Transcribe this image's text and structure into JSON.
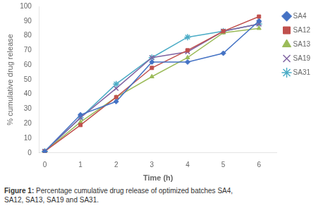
{
  "chart_data": {
    "type": "line",
    "x_label": "Time (h)",
    "y_label": "% cumulative drug release",
    "x": [
      0,
      1,
      2,
      3,
      4,
      5,
      6
    ],
    "series": [
      {
        "name": "SA4",
        "color": "#4472C4",
        "marker": "diamond",
        "values": [
          1,
          26,
          35,
          62,
          62,
          68,
          90
        ]
      },
      {
        "name": "SA12",
        "color": "#C0504D",
        "marker": "square",
        "values": [
          1,
          19,
          38,
          58,
          70,
          83,
          93
        ]
      },
      {
        "name": "SA13",
        "color": "#9BBB59",
        "marker": "triangle",
        "values": [
          1,
          21,
          38,
          52,
          65,
          82,
          85
        ]
      },
      {
        "name": "SA19",
        "color": "#8064A2",
        "marker": "x",
        "values": [
          1,
          24,
          44,
          65,
          69,
          83,
          88
        ]
      },
      {
        "name": "SA31",
        "color": "#4BACC6",
        "marker": "star",
        "values": [
          1,
          24,
          47,
          65,
          79,
          83,
          88
        ]
      }
    ],
    "xlim": [
      -0.15,
      6.5
    ],
    "xticks": [
      0,
      1,
      2,
      3,
      4,
      5,
      6
    ],
    "ylim": [
      0,
      100
    ],
    "yticks": [
      0,
      10,
      20,
      30,
      40,
      50,
      60,
      70,
      80,
      90,
      100
    ],
    "grid": false,
    "legend": "right",
    "annotations": [
      "Figure 1:",
      "Percentage cumulative drug release of optimized batches SA4,\nSA12, SA13, SA19 and SA31."
    ]
  }
}
